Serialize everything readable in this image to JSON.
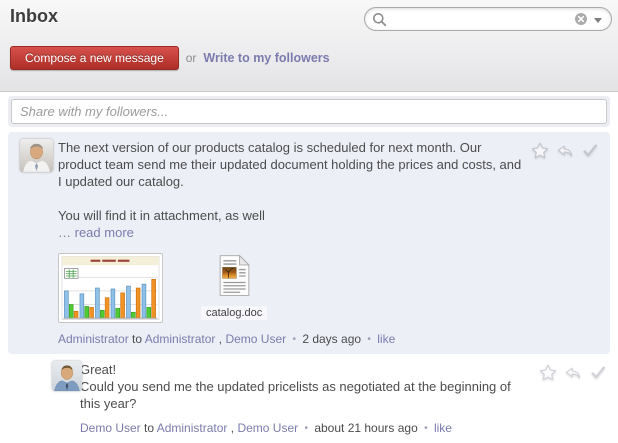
{
  "header": {
    "title": "Inbox",
    "search_value": "",
    "compose_button_label": "Compose a new message",
    "or_text": "or",
    "write_followers_label": "Write to my followers"
  },
  "composer": {
    "placeholder": "Share with my followers..."
  },
  "bullet": "•",
  "messages": [
    {
      "author": "Administrator",
      "to_text": "to",
      "comma": ",",
      "recipients": [
        "Administrator",
        "Demo User"
      ],
      "timestamp": "2 days ago",
      "like_label": "like",
      "body": {
        "p1": "The next version of our products catalog is scheduled for next month. Our product team send me their updated document holding the prices and costs, and I updated our catalog.",
        "p2": "You will find it in attachment, as well",
        "ellipsis": "…",
        "read_more_label": "read more"
      },
      "attachments": [
        {
          "kind": "image-preview",
          "label": ""
        },
        {
          "kind": "document",
          "label": "catalog.doc"
        }
      ]
    },
    {
      "author": "Demo User",
      "to_text": "to",
      "comma": ",",
      "recipients": [
        "Administrator",
        "Demo User"
      ],
      "timestamp": "about 21 hours ago",
      "like_label": "like",
      "body": {
        "p1": "Great!",
        "p2": "Could you send me the updated pricelists as negotiated at the beginning of this year?"
      }
    }
  ],
  "attachment_chart_thumbnail": {
    "type": "bar",
    "series": [
      "blue",
      "green",
      "orange"
    ],
    "colors": {
      "blue": "#8DC1E8",
      "blue_dark": "#4E86B4",
      "green": "#4FCB33",
      "green_dark": "#2F9A1C",
      "orange": "#F29222",
      "orange_dark": "#C06A10"
    },
    "groups": [
      {
        "blue": 28,
        "green": 14,
        "orange": 7
      },
      {
        "blue": 25,
        "green": 12,
        "orange": 11
      },
      {
        "blue": 31,
        "green": 8,
        "orange": 21
      },
      {
        "blue": 30,
        "green": 10,
        "orange": 26
      },
      {
        "blue": 33,
        "green": 6,
        "orange": 31
      },
      {
        "blue": 35,
        "green": 11,
        "orange": 40
      }
    ]
  },
  "colors": {
    "accent_purple": "#7C7BAD",
    "unread_bg": "#EDEFF7",
    "button_red_top": "#D8524C",
    "button_red_bottom": "#AD2E28"
  }
}
